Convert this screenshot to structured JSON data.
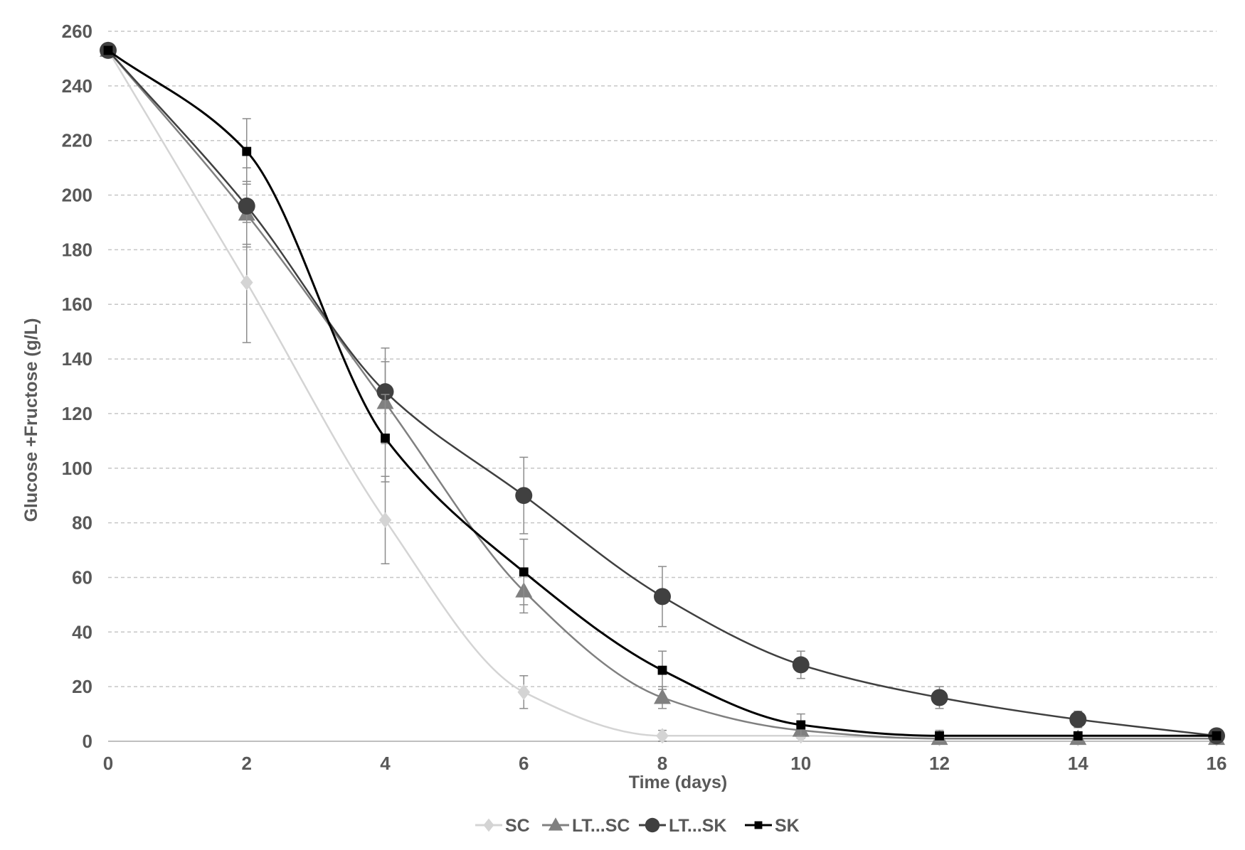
{
  "chart_data": {
    "type": "line",
    "title": "",
    "xlabel": "Time (days)",
    "ylabel": "Glucose +Fructose (g/L)",
    "xlim": [
      0,
      16
    ],
    "ylim": [
      0,
      260
    ],
    "x_ticks": [
      0,
      2,
      4,
      6,
      8,
      10,
      12,
      14,
      16
    ],
    "y_ticks": [
      0,
      20,
      40,
      60,
      80,
      100,
      120,
      140,
      160,
      180,
      200,
      220,
      240,
      260
    ],
    "grid": "horizontal dashed",
    "legend_position": "bottom",
    "series": [
      {
        "name": "SC",
        "color": "#d4d4d4",
        "marker": "diamond",
        "x": [
          0,
          2,
          4,
          6,
          8,
          10,
          12,
          14,
          16
        ],
        "y": [
          253,
          168,
          81,
          18,
          2,
          2,
          1,
          1,
          1
        ],
        "error": [
          0,
          22,
          16,
          6,
          2,
          1,
          1,
          1,
          1
        ]
      },
      {
        "name": "LT...SC",
        "color": "#808080",
        "marker": "triangle",
        "x": [
          0,
          2,
          4,
          6,
          8,
          10,
          12,
          14,
          16
        ],
        "y": [
          253,
          193,
          124,
          55,
          16,
          4,
          1,
          1,
          1
        ],
        "error": [
          0,
          12,
          15,
          8,
          4,
          2,
          1,
          1,
          1
        ]
      },
      {
        "name": "LT...SK",
        "color": "#404040",
        "marker": "circle",
        "x": [
          0,
          2,
          4,
          6,
          8,
          10,
          12,
          14,
          16
        ],
        "y": [
          253,
          196,
          128,
          90,
          53,
          28,
          16,
          8,
          2
        ],
        "error": [
          0,
          14,
          16,
          14,
          11,
          5,
          4,
          3,
          1
        ]
      },
      {
        "name": "SK",
        "color": "#000000",
        "marker": "square",
        "x": [
          0,
          2,
          4,
          6,
          8,
          10,
          12,
          14,
          16
        ],
        "y": [
          253,
          216,
          111,
          62,
          26,
          6,
          2,
          2,
          2
        ],
        "error": [
          0,
          12,
          16,
          12,
          7,
          4,
          2,
          1,
          1
        ]
      }
    ]
  }
}
